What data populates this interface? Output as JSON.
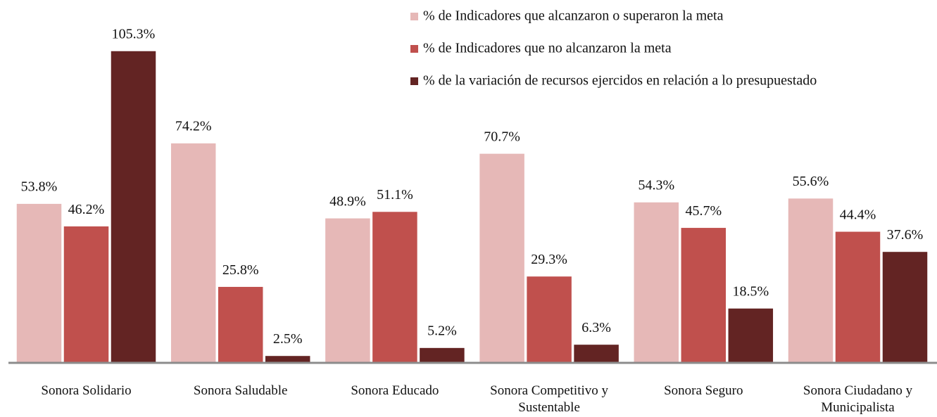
{
  "chart_data": {
    "type": "bar",
    "categories": [
      "Sonora Solidario",
      "Sonora Saludable",
      "Sonora Educado",
      "Sonora Competitivo y Sustentable",
      "Sonora Seguro",
      "Sonora Ciudadano y Municipalista"
    ],
    "series": [
      {
        "name": "% de Indicadores que alcanzaron o superaron la meta",
        "color": "#e6b8b7",
        "values": [
          53.8,
          74.2,
          48.9,
          70.7,
          54.3,
          55.6
        ],
        "value_labels": [
          "53.8%",
          "74.2%",
          "48.9%",
          "70.7%",
          "54.3%",
          "55.6%"
        ]
      },
      {
        "name": "% de Indicadores que no alcanzaron la meta",
        "color": "#c0504d",
        "values": [
          46.2,
          25.8,
          51.1,
          29.3,
          45.7,
          44.4
        ],
        "value_labels": [
          "46.2%",
          "25.8%",
          "51.1%",
          "29.3%",
          "45.7%",
          "44.4%"
        ]
      },
      {
        "name": "% de la variación de recursos ejercidos en relación a lo presupuestado",
        "color": "#632423",
        "values": [
          105.3,
          2.5,
          5.2,
          6.3,
          18.5,
          37.6
        ],
        "value_labels": [
          "105.3%",
          "2.5%",
          "5.2%",
          "6.3%",
          "18.5%",
          "37.6%"
        ]
      }
    ],
    "legend": "top-right"
  }
}
